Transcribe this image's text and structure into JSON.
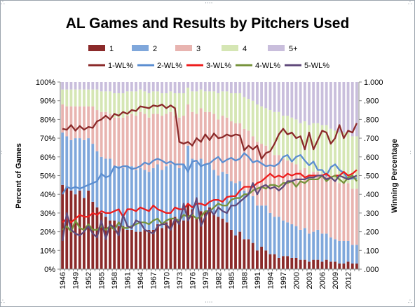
{
  "chart_data": {
    "type": "bar",
    "title": "AL Games and Results by Pitchers Used",
    "ylabel": "Percent of Games",
    "y2label": "Winning Percentage",
    "ylim": [
      0,
      100
    ],
    "y2lim": [
      0,
      1
    ],
    "y_ticks": [
      "0%",
      "10%",
      "20%",
      "30%",
      "40%",
      "50%",
      "60%",
      "70%",
      "80%",
      "90%",
      "100%"
    ],
    "y2_ticks": [
      ".000",
      ".100",
      ".200",
      ".300",
      ".400",
      ".500",
      ".600",
      ".700",
      ".800",
      ".900",
      "1.000"
    ],
    "x_tick_labels": [
      "1946",
      "1949",
      "1952",
      "1955",
      "1958",
      "1961",
      "1964",
      "1967",
      "1970",
      "1973",
      "1976",
      "1979",
      "1982",
      "1985",
      "1988",
      "1991",
      "1994",
      "1997",
      "2000",
      "2003",
      "2006",
      "2009",
      "2012"
    ],
    "x": [
      1946,
      1947,
      1948,
      1949,
      1950,
      1951,
      1952,
      1953,
      1954,
      1955,
      1956,
      1957,
      1958,
      1959,
      1960,
      1961,
      1962,
      1963,
      1964,
      1965,
      1966,
      1967,
      1968,
      1969,
      1970,
      1971,
      1972,
      1973,
      1974,
      1975,
      1976,
      1977,
      1978,
      1979,
      1980,
      1981,
      1982,
      1983,
      1984,
      1985,
      1986,
      1987,
      1988,
      1989,
      1990,
      1991,
      1992,
      1993,
      1994,
      1995,
      1996,
      1997,
      1998,
      1999,
      2000,
      2001,
      2002,
      2003,
      2004,
      2005,
      2006,
      2007,
      2008,
      2009,
      2010,
      2011,
      2012,
      2013,
      2014
    ],
    "stack_series": [
      {
        "name": "1",
        "color": "#8b2a2a",
        "values": [
          45,
          44,
          42,
          40,
          42,
          38,
          42,
          36,
          33,
          30,
          28,
          26,
          26,
          23,
          23,
          21,
          21,
          20,
          20,
          21,
          21,
          21,
          24,
          22,
          25,
          27,
          28,
          26,
          26,
          35,
          32,
          27,
          31,
          31,
          33,
          29,
          28,
          27,
          25,
          21,
          18,
          20,
          16,
          16,
          14,
          10,
          12,
          10,
          8,
          8,
          6,
          7,
          7,
          6,
          6,
          5,
          5,
          4,
          5,
          5,
          4,
          5,
          4,
          4,
          3,
          3,
          4,
          3,
          3
        ]
      },
      {
        "name": "2",
        "color": "#7fa7db",
        "values": [
          28,
          27,
          27,
          30,
          28,
          31,
          28,
          31,
          30,
          30,
          31,
          33,
          29,
          32,
          31,
          34,
          34,
          33,
          34,
          32,
          31,
          33,
          32,
          31,
          30,
          29,
          28,
          28,
          30,
          31,
          27,
          30,
          28,
          25,
          23,
          24,
          22,
          25,
          26,
          26,
          28,
          27,
          26,
          25,
          25,
          24,
          22,
          24,
          22,
          20,
          22,
          19,
          18,
          18,
          17,
          16,
          17,
          15,
          15,
          16,
          15,
          14,
          13,
          12,
          12,
          12,
          11,
          10,
          10
        ]
      },
      {
        "name": "3",
        "color": "#e8b4b0",
        "values": [
          15,
          16,
          18,
          17,
          17,
          18,
          17,
          20,
          22,
          24,
          25,
          24,
          26,
          26,
          27,
          27,
          28,
          29,
          30,
          30,
          29,
          29,
          27,
          29,
          28,
          28,
          26,
          27,
          26,
          22,
          25,
          26,
          27,
          28,
          28,
          30,
          30,
          30,
          30,
          32,
          32,
          31,
          33,
          33,
          32,
          34,
          33,
          32,
          33,
          33,
          33,
          33,
          33,
          33,
          33,
          32,
          32,
          32,
          32,
          31,
          32,
          31,
          31,
          31,
          31,
          31,
          31,
          30,
          30
        ]
      },
      {
        "name": "4",
        "color": "#d5e6b4",
        "values": [
          8,
          9,
          9,
          9,
          9,
          9,
          9,
          9,
          11,
          11,
          11,
          12,
          13,
          13,
          13,
          13,
          12,
          13,
          12,
          12,
          13,
          12,
          12,
          12,
          11,
          11,
          12,
          13,
          12,
          9,
          11,
          12,
          10,
          11,
          11,
          12,
          14,
          13,
          14,
          15,
          16,
          16,
          17,
          17,
          19,
          20,
          20,
          20,
          22,
          23,
          23,
          23,
          24,
          24,
          24,
          25,
          25,
          26,
          26,
          26,
          26,
          27,
          27,
          27,
          27,
          27,
          27,
          28,
          28
        ]
      },
      {
        "name": "5+",
        "color": "#c9bedc",
        "values": [
          4,
          4,
          4,
          4,
          4,
          4,
          4,
          4,
          4,
          5,
          5,
          5,
          6,
          6,
          6,
          5,
          5,
          5,
          4,
          5,
          6,
          5,
          5,
          6,
          6,
          5,
          6,
          6,
          6,
          3,
          5,
          5,
          4,
          5,
          5,
          5,
          6,
          5,
          5,
          6,
          6,
          6,
          8,
          9,
          10,
          12,
          13,
          14,
          15,
          16,
          16,
          18,
          18,
          19,
          20,
          22,
          21,
          23,
          22,
          22,
          23,
          23,
          25,
          26,
          27,
          27,
          27,
          29,
          29
        ]
      }
    ],
    "line_series": [
      {
        "name": "1-WL%",
        "color": "#8b2a2a",
        "values": [
          0.75,
          0.745,
          0.77,
          0.74,
          0.765,
          0.745,
          0.76,
          0.755,
          0.79,
          0.8,
          0.82,
          0.8,
          0.83,
          0.82,
          0.84,
          0.83,
          0.85,
          0.845,
          0.87,
          0.865,
          0.86,
          0.875,
          0.87,
          0.88,
          0.86,
          0.875,
          0.86,
          0.68,
          0.67,
          0.68,
          0.66,
          0.7,
          0.68,
          0.72,
          0.69,
          0.725,
          0.7,
          0.705,
          0.72,
          0.71,
          0.72,
          0.715,
          0.635,
          0.66,
          0.64,
          0.66,
          0.59,
          0.62,
          0.63,
          0.67,
          0.72,
          0.75,
          0.72,
          0.73,
          0.7,
          0.71,
          0.64,
          0.73,
          0.64,
          0.69,
          0.74,
          0.73,
          0.67,
          0.7,
          0.77,
          0.7,
          0.74,
          0.73,
          0.78
        ]
      },
      {
        "name": "2-WL%",
        "color": "#5b8ed1",
        "values": [
          0.4,
          0.44,
          0.43,
          0.44,
          0.43,
          0.44,
          0.45,
          0.46,
          0.47,
          0.51,
          0.49,
          0.5,
          0.55,
          0.54,
          0.55,
          0.55,
          0.535,
          0.54,
          0.55,
          0.57,
          0.56,
          0.58,
          0.59,
          0.58,
          0.565,
          0.575,
          0.56,
          0.56,
          0.56,
          0.52,
          0.575,
          0.58,
          0.55,
          0.56,
          0.565,
          0.585,
          0.6,
          0.57,
          0.585,
          0.595,
          0.58,
          0.59,
          0.62,
          0.6,
          0.57,
          0.58,
          0.565,
          0.55,
          0.555,
          0.55,
          0.565,
          0.6,
          0.61,
          0.575,
          0.6,
          0.61,
          0.58,
          0.555,
          0.575,
          0.53,
          0.53,
          0.5,
          0.545,
          0.56,
          0.53,
          0.515,
          0.48,
          0.485,
          0.485
        ]
      },
      {
        "name": "3-WL%",
        "color": "#ee1d1d",
        "values": [
          0.25,
          0.27,
          0.25,
          0.27,
          0.29,
          0.28,
          0.28,
          0.3,
          0.29,
          0.31,
          0.3,
          0.3,
          0.31,
          0.32,
          0.28,
          0.32,
          0.32,
          0.31,
          0.33,
          0.32,
          0.31,
          0.34,
          0.32,
          0.31,
          0.3,
          0.3,
          0.33,
          0.32,
          0.32,
          0.35,
          0.33,
          0.35,
          0.35,
          0.34,
          0.36,
          0.37,
          0.37,
          0.36,
          0.385,
          0.39,
          0.39,
          0.42,
          0.44,
          0.44,
          0.44,
          0.46,
          0.47,
          0.49,
          0.51,
          0.49,
          0.5,
          0.49,
          0.51,
          0.5,
          0.51,
          0.51,
          0.49,
          0.5,
          0.5,
          0.5,
          0.5,
          0.51,
          0.49,
          0.5,
          0.5,
          0.52,
          0.5,
          0.51,
          0.53
        ]
      },
      {
        "name": "4-WL%",
        "color": "#77933c",
        "values": [
          0.21,
          0.23,
          0.2,
          0.26,
          0.22,
          0.21,
          0.24,
          0.21,
          0.21,
          0.23,
          0.21,
          0.23,
          0.21,
          0.25,
          0.22,
          0.22,
          0.23,
          0.24,
          0.25,
          0.25,
          0.24,
          0.26,
          0.27,
          0.24,
          0.26,
          0.27,
          0.27,
          0.26,
          0.29,
          0.28,
          0.29,
          0.27,
          0.28,
          0.31,
          0.31,
          0.33,
          0.35,
          0.34,
          0.34,
          0.37,
          0.38,
          0.38,
          0.4,
          0.4,
          0.42,
          0.43,
          0.44,
          0.43,
          0.45,
          0.45,
          0.44,
          0.46,
          0.46,
          0.47,
          0.44,
          0.47,
          0.46,
          0.48,
          0.48,
          0.48,
          0.5,
          0.47,
          0.49,
          0.5,
          0.48,
          0.46,
          0.49,
          0.5,
          0.47
        ]
      },
      {
        "name": "5-WL%",
        "color": "#604a7b",
        "values": [
          0.15,
          0.3,
          0.21,
          0.19,
          0.18,
          0.2,
          0.23,
          0.19,
          0.17,
          0.26,
          0.16,
          0.24,
          0.22,
          0.18,
          0.29,
          0.23,
          0.22,
          0.26,
          0.25,
          0.21,
          0.2,
          0.19,
          0.23,
          0.24,
          0.24,
          0.21,
          0.27,
          0.24,
          0.35,
          0.26,
          0.3,
          0.38,
          0.23,
          0.28,
          0.32,
          0.29,
          0.33,
          0.31,
          0.3,
          0.34,
          0.34,
          0.36,
          0.38,
          0.4,
          0.46,
          0.4,
          0.44,
          0.45,
          0.43,
          0.44,
          0.42,
          0.44,
          0.47,
          0.47,
          0.48,
          0.48,
          0.48,
          0.49,
          0.49,
          0.5,
          0.5,
          0.48,
          0.49,
          0.47,
          0.5,
          0.49,
          0.48,
          0.49,
          0.5
        ]
      }
    ],
    "legend_placement": "top",
    "grid": false
  }
}
